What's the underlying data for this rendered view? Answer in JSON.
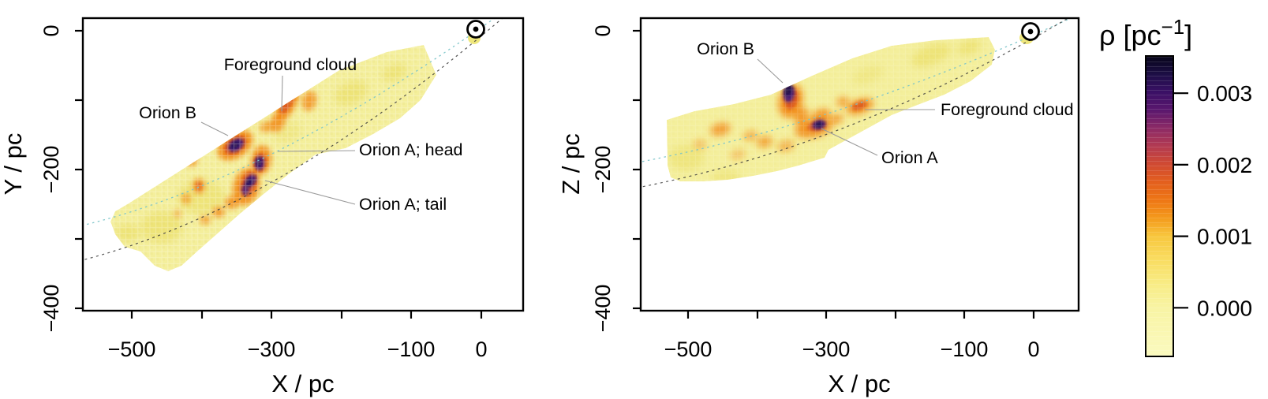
{
  "figure_description": "Two-panel dust density map of the Orion region with shared colorbar",
  "panels": [
    {
      "id": "xy",
      "xlabel": "X / pc",
      "ylabel": "Y / pc",
      "x_tick_labels": [
        "−500",
        "",
        "−300",
        "",
        "−100",
        "0"
      ],
      "y_tick_labels": [
        "0",
        "",
        "−200",
        "",
        "−400"
      ],
      "annotations": [
        "Foreground cloud",
        "Orion B",
        "Orion A; head",
        "Orion A; tail"
      ],
      "sun_marker": "⊙"
    },
    {
      "id": "xz",
      "xlabel": "X / pc",
      "ylabel": "Z / pc",
      "x_tick_labels": [
        "−500",
        "",
        "−300",
        "",
        "−100",
        "0"
      ],
      "y_tick_labels": [
        "0",
        "",
        "−200",
        "",
        "−400"
      ],
      "annotations": [
        "Orion B",
        "Foreground cloud",
        "Orion A"
      ],
      "sun_marker": "⊙"
    }
  ],
  "colorbar": {
    "title": {
      "prefix": "ρ [pc",
      "exp": "−1",
      "suffix": "]"
    },
    "tick_labels": [
      "0.003",
      "0.002",
      "0.001",
      "0.000"
    ]
  },
  "chart_data": [
    {
      "type": "heatmap",
      "title": "",
      "xlabel": "X / pc",
      "ylabel": "Y / pc",
      "xlim": [
        -560,
        60
      ],
      "ylim": [
        -422,
        18
      ],
      "x_ticks": [
        -500,
        -400,
        -300,
        -200,
        -100,
        0
      ],
      "x_tick_labels_shown": [
        "−500",
        "−300",
        "−100",
        "0"
      ],
      "y_ticks": [
        0,
        -100,
        -200,
        -300,
        -400
      ],
      "y_tick_labels_shown": [
        "0",
        "−200",
        "−400"
      ],
      "colorbar_label": "ρ [pc⁻¹]",
      "colorbar_ticks": [
        0.003,
        0.002,
        0.001,
        0.0
      ],
      "sun_position_pc": [
        0,
        0
      ],
      "survey_wedge": "cone from Sun at (0,0) extending to lower left, X ≈ −80 to −530 pc, Y ≈ −20 to −345 pc, background density ≈ 0",
      "sightlines": "two dashed lines (teal dotted, black dashed) from the Sun through the wedge",
      "features": [
        {
          "label": "Foreground cloud",
          "x_pc": -280,
          "y_pc": -105,
          "density": "≈0.002"
        },
        {
          "label": "Orion B",
          "x_pc": -350,
          "y_pc": -165,
          "density": "≈0.003"
        },
        {
          "label": "Orion A; head",
          "x_pc": -317,
          "y_pc": -191,
          "density": "≈0.003"
        },
        {
          "label": "Orion A; tail",
          "x_pc": -331,
          "y_pc": -219,
          "density": "≈0.003"
        }
      ],
      "legend_position": "shared colorbar at right"
    },
    {
      "type": "heatmap",
      "title": "",
      "xlabel": "X / pc",
      "ylabel": "Z / pc",
      "xlim": [
        -560,
        60
      ],
      "ylim": [
        -422,
        18
      ],
      "x_ticks": [
        -500,
        -400,
        -300,
        -200,
        -100,
        0
      ],
      "x_tick_labels_shown": [
        "−500",
        "−300",
        "−100",
        "0"
      ],
      "y_ticks": [
        0,
        -100,
        -200,
        -300,
        -400
      ],
      "y_tick_labels_shown": [
        "0",
        "−200",
        "−400"
      ],
      "colorbar_label": "ρ [pc⁻¹]",
      "colorbar_ticks": [
        0.003,
        0.002,
        0.001,
        0.0
      ],
      "sun_position_pc": [
        0,
        0
      ],
      "survey_wedge": "flattened cone from Sun at (0,0) toward lower left, X ≈ −65 to −530 pc, Z ≈ −10 to −235 pc",
      "sightlines": "two dashed lines (teal dotted, black dashed) from the Sun through the wedge",
      "features": [
        {
          "label": "Orion B",
          "x_pc": -357,
          "y_pc": -89,
          "density": "≈0.003"
        },
        {
          "label": "Foreground cloud",
          "x_pc": -255,
          "y_pc": -108,
          "density": "≈0.002"
        },
        {
          "label": "Orion A",
          "x_pc": -315,
          "y_pc": -135,
          "density": "≈0.003"
        }
      ],
      "legend_position": "shared colorbar at right"
    }
  ]
}
